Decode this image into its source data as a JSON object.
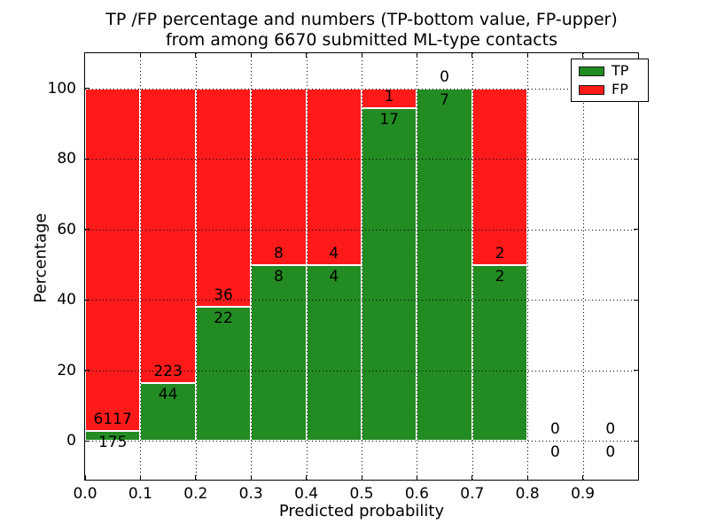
{
  "title": {
    "line1": "TP /FP percentage and numbers (TP-bottom value, FP-upper)",
    "line2": "from among 6670 submitted ML-type contacts"
  },
  "legend": {
    "items": [
      {
        "label": "TP",
        "color": "#228b22"
      },
      {
        "label": "FP",
        "color": "#ff1a1a"
      }
    ]
  },
  "chart_data": {
    "type": "bar",
    "stacked": true,
    "title": "TP /FP percentage and numbers (TP-bottom value, FP-upper) from among 6670 submitted ML-type contacts",
    "xlabel": "Predicted probability",
    "ylabel": "Percentage",
    "xlim": [
      0.0,
      1.0
    ],
    "ylim": [
      -11,
      110
    ],
    "xticks": [
      "0.0",
      "0.1",
      "0.2",
      "0.3",
      "0.4",
      "0.5",
      "0.6",
      "0.7",
      "0.8",
      "0.9"
    ],
    "yticks": [
      "0",
      "20",
      "40",
      "60",
      "80",
      "100"
    ],
    "grid": "dotted, drawn above bars",
    "legend_position": "upper right",
    "bin_width": 0.1,
    "bin_starts": [
      0.0,
      0.1,
      0.2,
      0.3,
      0.4,
      0.5,
      0.6,
      0.7,
      0.8,
      0.9
    ],
    "bar_value_unit": "percent of bin total (each non-empty stack sums to 100%)",
    "series": [
      {
        "name": "TP",
        "color": "#228b22",
        "counts": [
          175,
          44,
          22,
          8,
          4,
          17,
          7,
          2,
          0,
          0
        ]
      },
      {
        "name": "FP",
        "color": "#ff1a1a",
        "counts": [
          6117,
          223,
          36,
          8,
          4,
          1,
          0,
          2,
          0,
          0
        ]
      }
    ],
    "bar_edge_color": "#ffffff",
    "total_contacts": 6670
  }
}
